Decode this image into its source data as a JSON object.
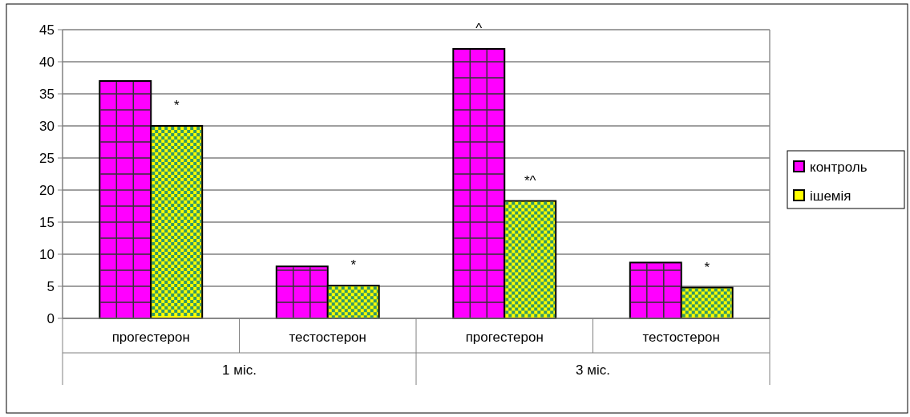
{
  "chart_data": {
    "type": "bar",
    "categories": [
      "прогестерон",
      "тестостерон",
      "прогестерон",
      "тестостерон"
    ],
    "series": [
      {
        "name": "контроль",
        "color": "#ff00ff",
        "values": [
          37,
          8.1,
          42,
          8.7
        ],
        "value_labels": [
          null,
          null,
          "^",
          null
        ]
      },
      {
        "name": "ішемія",
        "color": "#ffff00",
        "values": [
          30,
          5.1,
          18.3,
          4.8
        ],
        "value_labels": [
          "*",
          "*",
          "*^",
          "*"
        ]
      }
    ],
    "annotations": [
      "1 міс.",
      "3 міс."
    ],
    "ylim": [
      0,
      45
    ],
    "yticks": [
      0,
      5,
      10,
      15,
      20,
      25,
      30,
      35,
      40,
      45
    ],
    "grid": "y",
    "legend": "right"
  }
}
